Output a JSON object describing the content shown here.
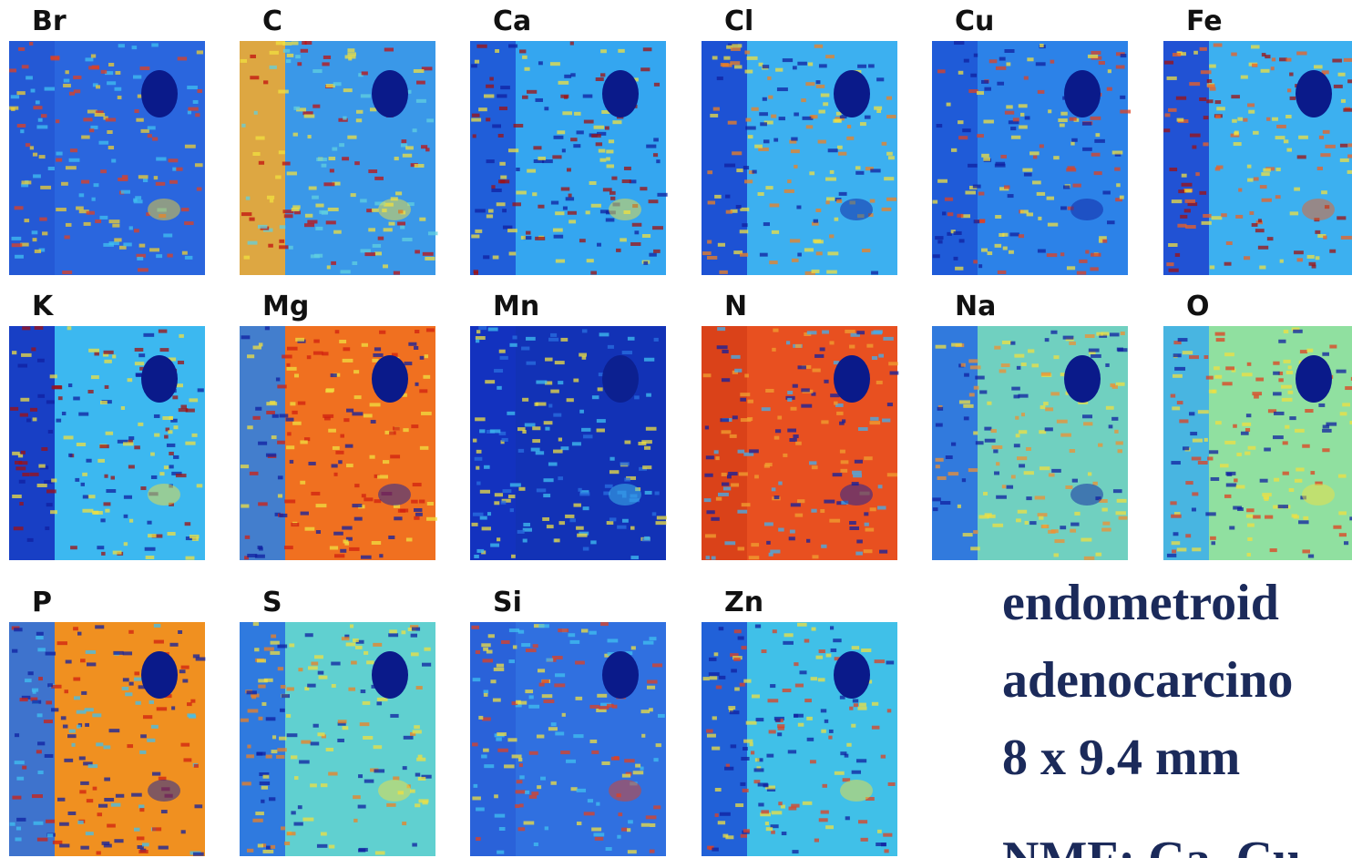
{
  "panels": [
    {
      "label": "Br"
    },
    {
      "label": "C"
    },
    {
      "label": "Ca"
    },
    {
      "label": "Cl"
    },
    {
      "label": "Cu"
    },
    {
      "label": "Fe"
    },
    {
      "label": "K"
    },
    {
      "label": "Mg"
    },
    {
      "label": "Mn"
    },
    {
      "label": "N"
    },
    {
      "label": "Na"
    },
    {
      "label": "O"
    },
    {
      "label": "P"
    },
    {
      "label": "S"
    },
    {
      "label": "Si"
    },
    {
      "label": "Zn"
    }
  ],
  "description": {
    "lines": [
      "endometroid",
      "adenocarcino",
      "8 x 9.4 mm"
    ],
    "method": "NMF: Ca, Cu"
  }
}
